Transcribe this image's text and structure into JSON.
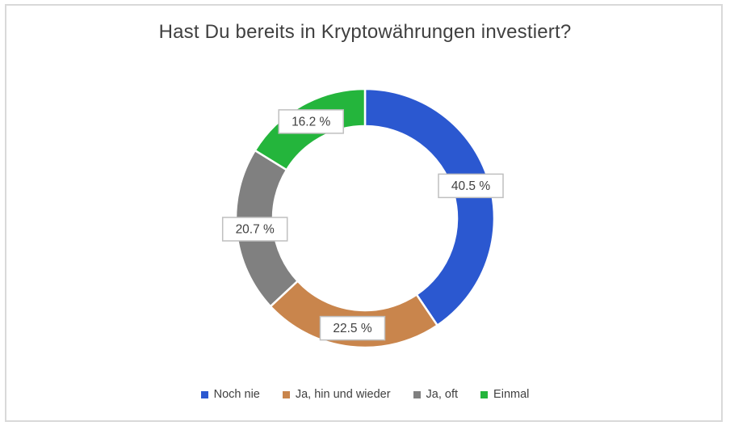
{
  "chart_data": {
    "type": "pie",
    "subtype": "doughnut",
    "title": "Hast Du bereits in Kryptowährungen investiert?",
    "categories": [
      "Noch nie",
      "Ja, hin und wieder",
      "Ja, oft",
      "Einmal"
    ],
    "values": [
      40.5,
      22.5,
      20.7,
      16.2
    ],
    "data_labels": [
      "40.5 %",
      "22.5 %",
      "20.7 %",
      "16.2 %"
    ],
    "colors": [
      "#2B58D0",
      "#C9854C",
      "#808080",
      "#24B53C"
    ],
    "legend_position": "bottom",
    "start_angle_deg": 0,
    "direction": "clockwise",
    "hole_ratio": 0.71
  },
  "styles": {
    "background": "#FFFFFF",
    "frame_border_color": "#D9D9D9",
    "title_color": "#404040",
    "label_text_color": "#404040",
    "label_box_fill": "#FFFFFF",
    "label_box_border_color": "#BFBFBF",
    "legend_text_color": "#404040",
    "segment_gap_color": "#FFFFFF"
  }
}
